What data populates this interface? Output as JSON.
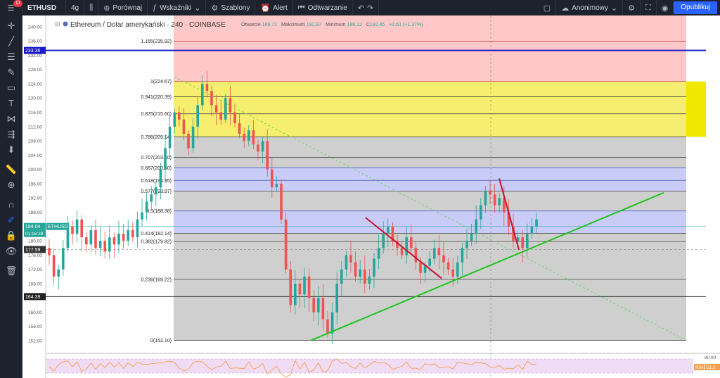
{
  "toolbar": {
    "symbol": "ETHUSD",
    "interval": "4g",
    "compare": "Porównaj",
    "indicators": "Wskaźniki",
    "templates": "Szablony",
    "alert": "Alert",
    "replay": "Odtwarzanie",
    "anonymous": "Anonimowy",
    "publish": "Opublikuj",
    "badge": "11"
  },
  "legend": {
    "title": "Ethereum / Dolar amerykański · 240 · COINBASE",
    "open_label": "Otwarcie",
    "open": "189.71",
    "high_label": "Maksimum",
    "high": "192.97",
    "low_label": "Minimum",
    "low": "188.12",
    "close_label": "C",
    "close": "192.45",
    "change": "+2.61 (+1.37%)"
  },
  "price_tags": {
    "blue_line": "233.36",
    "current": "184.04",
    "current_symbol": "ETHUSD",
    "countdown": "01:18:28",
    "crosshair": "177.59",
    "black_line": "164.39"
  },
  "rsi": {
    "label": "RSI",
    "value": "51.2",
    "top_tick": "80.00"
  },
  "colors": {
    "up": "#26a69a",
    "down": "#ef5350",
    "trend_green": "#1ec41e",
    "trend_red": "#c8102e",
    "blue_line": "#1a1ac8",
    "rsi_line": "#f5a04f",
    "rsi_fill": "#f1dcf5"
  },
  "chart_data": {
    "type": "candlestick",
    "ylim": [
      148,
      242
    ],
    "y_ticks": [
      152,
      156,
      160,
      164,
      168,
      172,
      176,
      180,
      184,
      188,
      192,
      196,
      200,
      204,
      208,
      212,
      216,
      220,
      224,
      228,
      232,
      236,
      240
    ],
    "fib_levels": [
      {
        "ratio": "1.155",
        "price": 235.92
      },
      {
        "ratio": "1",
        "price": 224.67
      },
      {
        "ratio": "0.941",
        "price": 220.39
      },
      {
        "ratio": "0.875",
        "price": 215.6
      },
      {
        "ratio": "0.786",
        "price": 209.14
      },
      {
        "ratio": "0.707",
        "price": 203.4
      },
      {
        "ratio": "0.667",
        "price": 200.5
      },
      {
        "ratio": "0.618",
        "price": 196.95
      },
      {
        "ratio": "0.577",
        "price": 193.97
      },
      {
        "ratio": "0.5",
        "price": 188.38
      },
      {
        "ratio": "0.414",
        "price": 182.14
      },
      {
        "ratio": "0.382",
        "price": 179.82
      },
      {
        "ratio": "0.236",
        "price": 169.22
      },
      {
        "ratio": "0",
        "price": 152.1
      }
    ],
    "closes": [
      176,
      170,
      172,
      178,
      184,
      182,
      186,
      181,
      179,
      183,
      178,
      180,
      177,
      181,
      179,
      182,
      180,
      183,
      181,
      186,
      188,
      191,
      193,
      195,
      200,
      206,
      212,
      216,
      214,
      210,
      206,
      212,
      218,
      224,
      222,
      218,
      216,
      214,
      220,
      216,
      213,
      210,
      208,
      211,
      207,
      205,
      208,
      200,
      195,
      196,
      186,
      172,
      162,
      168,
      165,
      170,
      164,
      160,
      164,
      158,
      154,
      160,
      168,
      172,
      176,
      174,
      170,
      172,
      168,
      170,
      175,
      178,
      182,
      184,
      180,
      178,
      176,
      181,
      178,
      174,
      171,
      173,
      175,
      178,
      176,
      174,
      172,
      170,
      174,
      178,
      180,
      182,
      186,
      190,
      194,
      193,
      190,
      192,
      188,
      184,
      180,
      181,
      178,
      182,
      184,
      186
    ]
  }
}
